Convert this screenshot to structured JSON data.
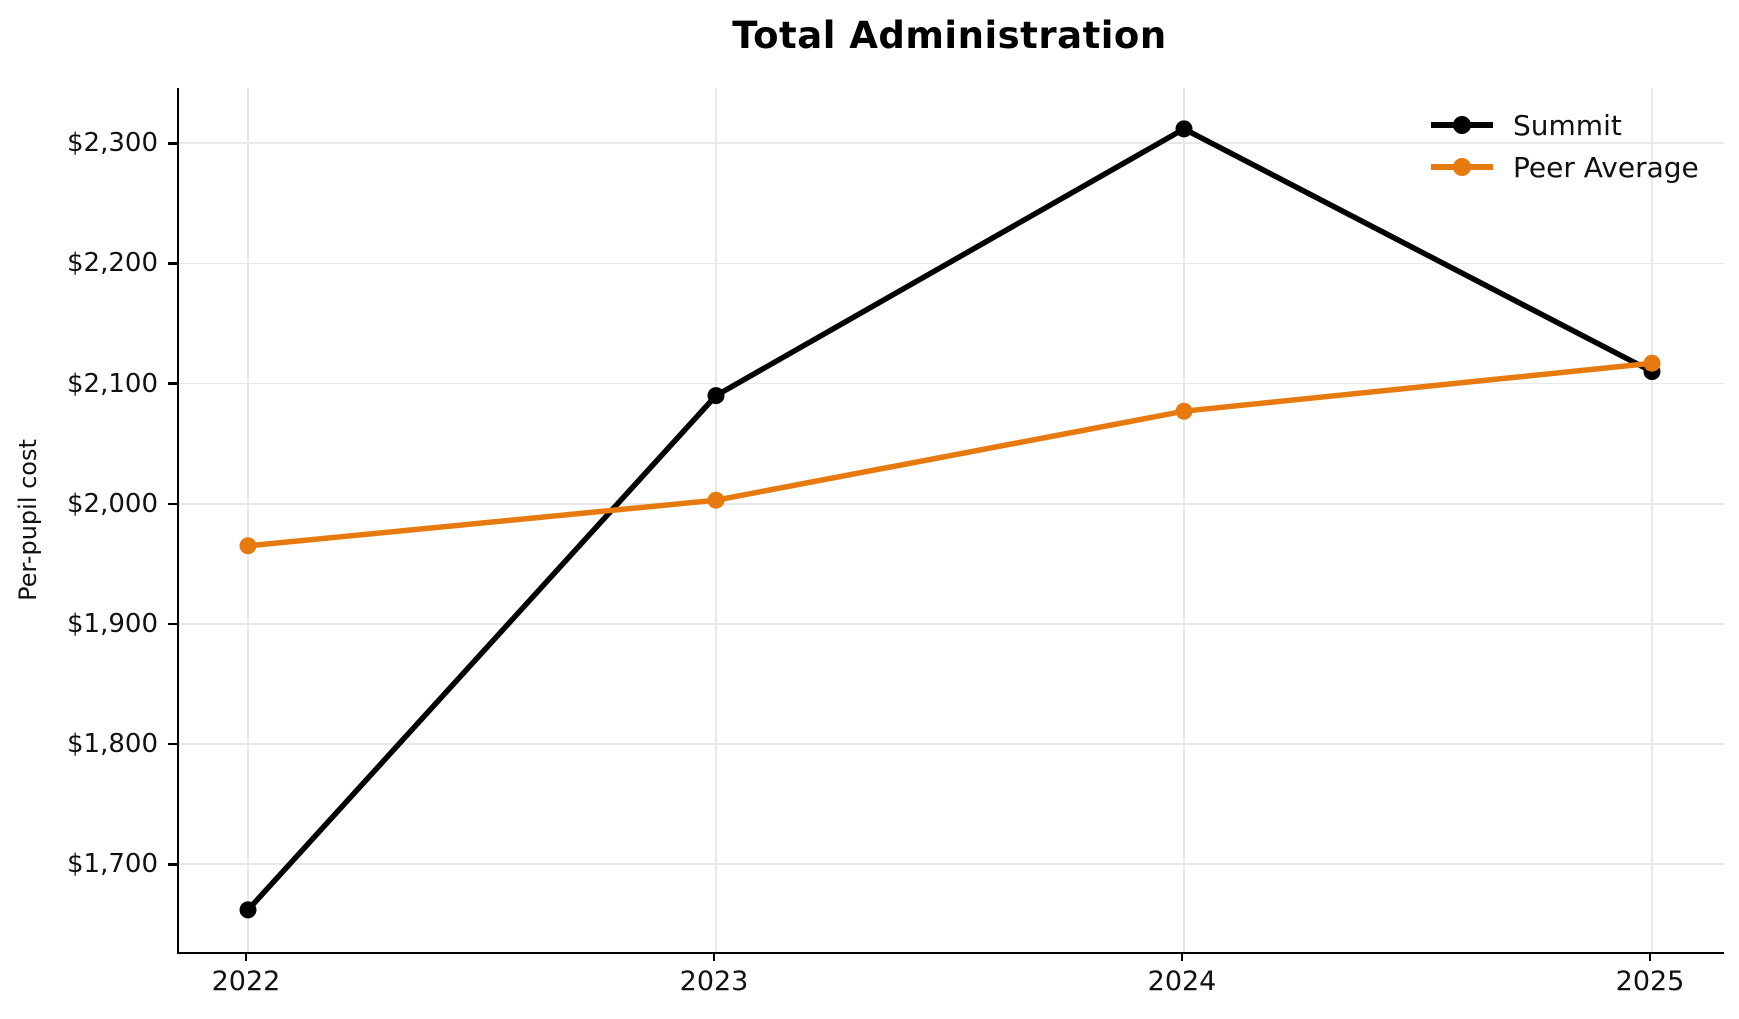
{
  "figure": {
    "title": "Total Administration",
    "background_color": "#ffffff",
    "text_color": "#111111"
  },
  "chart_data": {
    "type": "line",
    "title": "Total Administration",
    "xlabel": "",
    "ylabel": "Per-pupil cost",
    "x": [
      2022,
      2023,
      2024,
      2025
    ],
    "xtick_labels": [
      "2022",
      "2023",
      "2024",
      "2025"
    ],
    "series": [
      {
        "name": "Summit",
        "color": "#000000",
        "marker": "circle",
        "values": [
          1662,
          2090,
          2312,
          2110
        ]
      },
      {
        "name": "Peer Average",
        "color": "#E67A0E",
        "marker": "circle",
        "values": [
          1965,
          2003,
          2077,
          2117
        ]
      }
    ],
    "ylim": [
      1627,
      2346
    ],
    "yticks": [
      1700,
      1800,
      1900,
      2000,
      2100,
      2200,
      2300
    ],
    "ytick_labels": [
      "$1,700",
      "$1,800",
      "$1,900",
      "$2,000",
      "$2,100",
      "$2,200",
      "$2,300"
    ],
    "currency_format": "$#,##0",
    "grid": true,
    "gridline_color": "#E8E8E8",
    "legend_position": "upper right",
    "legend_frame": false
  },
  "legend": {
    "items": [
      {
        "label": "Summit",
        "color": "#000000"
      },
      {
        "label": "Peer Average",
        "color": "#E67A0E"
      }
    ]
  }
}
